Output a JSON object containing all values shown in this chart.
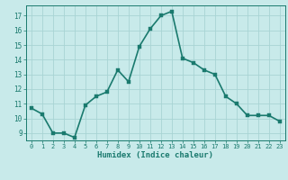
{
  "x": [
    0,
    1,
    2,
    3,
    4,
    5,
    6,
    7,
    8,
    9,
    10,
    11,
    12,
    13,
    14,
    15,
    16,
    17,
    18,
    19,
    20,
    21,
    22,
    23
  ],
  "y": [
    10.7,
    10.3,
    9.0,
    9.0,
    8.7,
    10.9,
    11.5,
    11.8,
    13.3,
    12.5,
    14.9,
    16.1,
    17.0,
    17.3,
    14.1,
    13.8,
    13.3,
    13.0,
    11.5,
    11.0,
    10.2,
    10.2,
    10.2,
    9.8
  ],
  "xlabel": "Humidex (Indice chaleur)",
  "ylim": [
    8.5,
    17.7
  ],
  "xlim": [
    -0.5,
    23.5
  ],
  "yticks": [
    9,
    10,
    11,
    12,
    13,
    14,
    15,
    16,
    17
  ],
  "xticks": [
    0,
    1,
    2,
    3,
    4,
    5,
    6,
    7,
    8,
    9,
    10,
    11,
    12,
    13,
    14,
    15,
    16,
    17,
    18,
    19,
    20,
    21,
    22,
    23
  ],
  "line_color": "#1a7a6e",
  "marker_color": "#1a7a6e",
  "bg_color": "#c8eaea",
  "grid_color": "#a8d4d4",
  "axis_color": "#1a7a6e",
  "tick_label_color": "#1a7a6e",
  "xlabel_color": "#1a7a6e",
  "line_width": 1.2,
  "marker_size": 2.5
}
